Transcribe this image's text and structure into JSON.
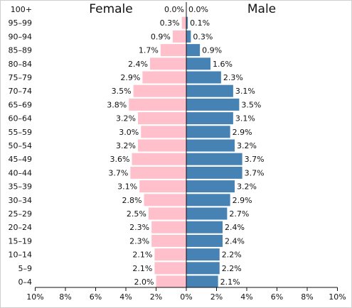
{
  "chart_data": {
    "type": "bar",
    "orientation": "horizontal",
    "kind": "population-pyramid",
    "left_title": "Female",
    "right_title": "Male",
    "categories": [
      "100+",
      "95–99",
      "90–94",
      "85–89",
      "80–84",
      "75–79",
      "70–74",
      "65–69",
      "60–64",
      "55–59",
      "50–54",
      "45–49",
      "40–44",
      "35–39",
      "30–34",
      "25–29",
      "20–24",
      "15–19",
      "10–14",
      "5–9",
      "0–4"
    ],
    "series": [
      {
        "name": "Female",
        "color": "#ffc0cb",
        "values": [
          0.0,
          0.3,
          0.9,
          1.7,
          2.4,
          2.9,
          3.5,
          3.8,
          3.2,
          3.0,
          3.2,
          3.6,
          3.7,
          3.1,
          2.8,
          2.5,
          2.3,
          2.3,
          2.1,
          2.1,
          2.0
        ],
        "labels": [
          "0.0%",
          "0.3%",
          "0.9%",
          "1.7%",
          "2.4%",
          "2.9%",
          "3.5%",
          "3.8%",
          "3.2%",
          "3.0%",
          "3.2%",
          "3.6%",
          "3.7%",
          "3.1%",
          "2.8%",
          "2.5%",
          "2.3%",
          "2.3%",
          "2.1%",
          "2.1%",
          "2.0%"
        ]
      },
      {
        "name": "Male",
        "color": "#4682b4",
        "values": [
          0.0,
          0.1,
          0.3,
          0.9,
          1.6,
          2.3,
          3.1,
          3.5,
          3.1,
          2.9,
          3.2,
          3.7,
          3.7,
          3.2,
          2.9,
          2.7,
          2.4,
          2.4,
          2.2,
          2.2,
          2.1
        ],
        "labels": [
          "0.0%",
          "0.1%",
          "0.3%",
          "0.9%",
          "1.6%",
          "2.3%",
          "3.1%",
          "3.5%",
          "3.1%",
          "2.9%",
          "3.2%",
          "3.7%",
          "3.7%",
          "3.2%",
          "2.9%",
          "2.7%",
          "2.4%",
          "2.4%",
          "2.2%",
          "2.2%",
          "2.1%"
        ]
      }
    ],
    "x_ticks": [
      "10%",
      "8%",
      "6%",
      "4%",
      "2%",
      "0%",
      "2%",
      "4%",
      "6%",
      "8%",
      "10%"
    ],
    "xlim": [
      -10,
      10
    ],
    "grid": false,
    "legend": "none"
  }
}
